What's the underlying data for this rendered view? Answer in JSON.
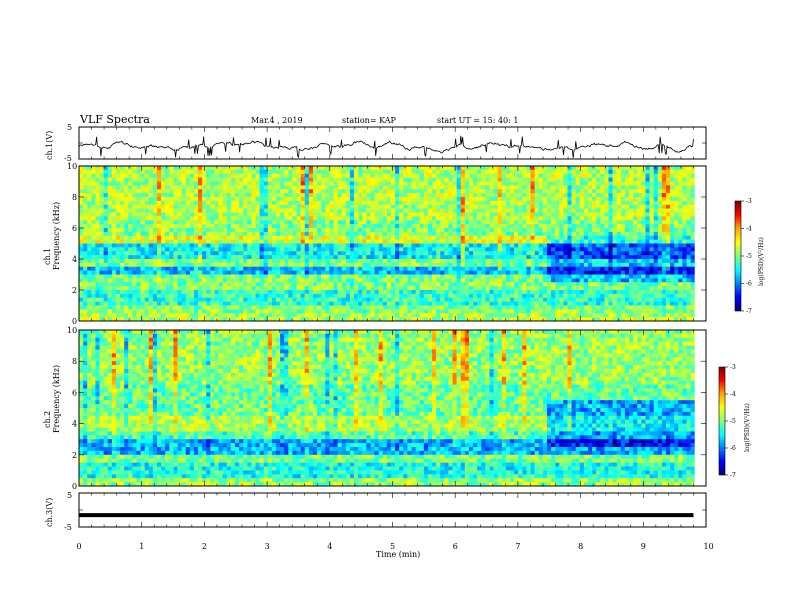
{
  "header": {
    "title": "VLF Spectra",
    "date": "Mar.4 , 2019",
    "station": "station= KAP",
    "start": "start UT = 15: 40: 1"
  },
  "colorbar": {
    "label": "log(PSD)(V²/Hz)",
    "ticks": [
      "-3",
      "-4",
      "-5",
      "-6",
      "-7"
    ],
    "colors": [
      "#7a0000",
      "#ff0000",
      "#ffa500",
      "#ffff00",
      "#7fff7f",
      "#00ffff",
      "#0080ff",
      "#0000ff",
      "#00007f"
    ]
  },
  "chart_data": [
    {
      "type": "line",
      "panel": "ch1-waveform",
      "ylabel": "ch.1(V)",
      "ylim": [
        -5,
        5
      ],
      "yticks": [
        "5",
        "-5"
      ],
      "x_range": [
        0,
        9.8
      ],
      "note_values": "noisy waveform fluctuating roughly between -4 and 3 V around a mean near -1 V",
      "baseline": -1,
      "amplitude": 1.8
    },
    {
      "type": "heatmap",
      "panel": "ch1-spectrogram",
      "ylabel": "Frequency (kHz)",
      "ylabel_prefix": "ch.1",
      "ylim": [
        0,
        10
      ],
      "yticks": [
        "0",
        "2",
        "4",
        "6",
        "8",
        "10"
      ],
      "z_range": [
        -7,
        -3
      ],
      "bands": [
        {
          "from": 0.0,
          "to": 0.5,
          "level": -4.8
        },
        {
          "from": 0.5,
          "to": 1.0,
          "level": -5.0
        },
        {
          "from": 1.0,
          "to": 2.0,
          "level": -5.3
        },
        {
          "from": 2.0,
          "to": 3.0,
          "level": -5.0
        },
        {
          "from": 3.0,
          "to": 3.5,
          "level": -5.7
        },
        {
          "from": 3.5,
          "to": 4.0,
          "level": -5.0
        },
        {
          "from": 4.0,
          "to": 5.0,
          "level": -5.5
        },
        {
          "from": 5.0,
          "to": 5.5,
          "level": -4.6
        },
        {
          "from": 5.5,
          "to": 6.5,
          "level": -5.0
        },
        {
          "from": 6.5,
          "to": 10.0,
          "level": -4.8
        }
      ]
    },
    {
      "type": "heatmap",
      "panel": "ch2-spectrogram",
      "ylabel": "Frequency (kHz)",
      "ylabel_prefix": "ch.2",
      "ylim": [
        0,
        10
      ],
      "yticks": [
        "0",
        "2",
        "4",
        "6",
        "8",
        "10"
      ],
      "z_range": [
        -7,
        -3
      ],
      "bands": [
        {
          "from": 0.0,
          "to": 0.5,
          "level": -4.9
        },
        {
          "from": 0.5,
          "to": 1.5,
          "level": -5.4
        },
        {
          "from": 1.5,
          "to": 2.0,
          "level": -5.0
        },
        {
          "from": 2.0,
          "to": 3.0,
          "level": -5.8
        },
        {
          "from": 3.0,
          "to": 3.5,
          "level": -5.2
        },
        {
          "from": 3.5,
          "to": 4.5,
          "level": -4.8
        },
        {
          "from": 4.5,
          "to": 6.5,
          "level": -5.1
        },
        {
          "from": 6.5,
          "to": 10.0,
          "level": -4.9
        }
      ]
    },
    {
      "type": "line",
      "panel": "ch3-waveform",
      "ylabel": "ch.3(V)",
      "ylim": [
        -5,
        5
      ],
      "yticks": [
        "5",
        "-5"
      ],
      "x": [
        0,
        9.8
      ],
      "y": [
        -1.5,
        -1.5
      ]
    }
  ],
  "xaxis": {
    "label": "Time (min)",
    "ticks": [
      "0",
      "1",
      "2",
      "3",
      "4",
      "5",
      "6",
      "7",
      "8",
      "9",
      "10"
    ],
    "xlim": [
      0,
      10
    ]
  }
}
